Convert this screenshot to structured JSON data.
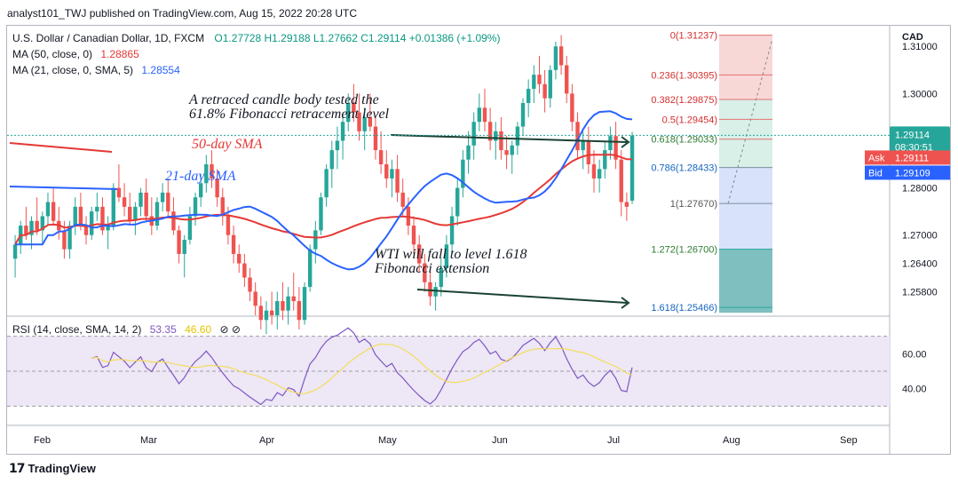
{
  "header": {
    "publisher": "analyst101_TWJ published on TradingView.com, Aug 15, 2022 20:28 UTC"
  },
  "legend": {
    "symbol": "U.S. Dollar / Canadian Dollar, 1D, FXCM",
    "ohlc": "O1.27728  H1.29188  L1.27662  C1.29114  +0.01386 (+1.09%)",
    "ma50": "MA (50, close, 0)",
    "ma50_val": "1.28865",
    "ma21": "MA (21, close, 0, SMA, 5)",
    "ma21_val": "1.28554",
    "rsi": "RSI (14, close, SMA, 14, 2)",
    "rsi_val": "53.35",
    "rsi_sma_val": "46.60"
  },
  "currency": "CAD",
  "footer": {
    "brand": "TradingView"
  },
  "colors": {
    "up": "#26a69a",
    "down": "#ef5350",
    "ma50": "#e53935",
    "ma21": "#2962ff",
    "rsi": "#7e57c2",
    "rsi_sma": "#f5dd5a",
    "rsi_band": "#ede7f6",
    "fib_red": "#f8d7d7",
    "fib_green": "#d8f0e8",
    "fib_blue": "#d8e2fb",
    "fib_teal": "#7fbfc0"
  },
  "chart_data": {
    "type": "candlestick",
    "symbol": "USDCAD",
    "timeframe": "1D",
    "y_range": [
      1.253,
      1.314
    ],
    "price_ticks": [
      1.31,
      1.3,
      1.29,
      1.28,
      1.27,
      1.264,
      1.258
    ],
    "rsi_ticks": [
      60.0,
      40.0
    ],
    "x_labels": [
      "Feb",
      "Mar",
      "Apr",
      "May",
      "Jun",
      "Jul",
      "Aug",
      "Sep"
    ],
    "last_price": {
      "value": "1.29114",
      "countdown": "08:30:51"
    },
    "ask": {
      "label": "Ask",
      "value": "1.29111"
    },
    "bid": {
      "label": "Bid",
      "value": "1.29109"
    },
    "fibonacci": [
      {
        "label": "0(1.31237)",
        "price": 1.31237
      },
      {
        "label": "0.236(1.30395)",
        "price": 1.30395
      },
      {
        "label": "0.382(1.29875)",
        "price": 1.29875
      },
      {
        "label": "0.5(1.29454)",
        "price": 1.29454
      },
      {
        "label": "0.618(1.29033)",
        "price": 1.29033
      },
      {
        "label": "0.786(1.28433)",
        "price": 1.28433
      },
      {
        "label": "1(1.27670)",
        "price": 1.2767
      },
      {
        "label": "1.272(1.26700)",
        "price": 1.267
      },
      {
        "label": "1.618(1.25466)",
        "price": 1.25466
      }
    ],
    "annotations": [
      {
        "text_line1": "A retraced candle body tested the",
        "text_line2": "61.8% Fibonacci retracement level"
      },
      {
        "text_line1": "WTI  will fall to level 1.618",
        "text_line2": "Fibonacci extension"
      },
      {
        "text": "50-day SMA"
      },
      {
        "text": "21-day SMA"
      }
    ],
    "candles": [
      [
        1.265,
        1.27,
        1.261,
        1.268
      ],
      [
        1.268,
        1.273,
        1.266,
        1.272
      ],
      [
        1.272,
        1.276,
        1.269,
        1.27
      ],
      [
        1.27,
        1.274,
        1.267,
        1.273
      ],
      [
        1.273,
        1.278,
        1.27,
        1.271
      ],
      [
        1.271,
        1.275,
        1.268,
        1.274
      ],
      [
        1.274,
        1.279,
        1.272,
        1.277
      ],
      [
        1.277,
        1.28,
        1.272,
        1.273
      ],
      [
        1.273,
        1.276,
        1.269,
        1.271
      ],
      [
        1.271,
        1.273,
        1.265,
        1.267
      ],
      [
        1.267,
        1.273,
        1.265,
        1.272
      ],
      [
        1.272,
        1.278,
        1.27,
        1.276
      ],
      [
        1.276,
        1.279,
        1.271,
        1.272
      ],
      [
        1.272,
        1.274,
        1.268,
        1.27
      ],
      [
        1.27,
        1.276,
        1.269,
        1.275
      ],
      [
        1.275,
        1.279,
        1.273,
        1.276
      ],
      [
        1.276,
        1.278,
        1.27,
        1.271
      ],
      [
        1.271,
        1.274,
        1.267,
        1.272
      ],
      [
        1.272,
        1.281,
        1.271,
        1.28
      ],
      [
        1.28,
        1.285,
        1.277,
        1.278
      ],
      [
        1.278,
        1.281,
        1.274,
        1.276
      ],
      [
        1.276,
        1.279,
        1.272,
        1.273
      ],
      [
        1.273,
        1.277,
        1.27,
        1.276
      ],
      [
        1.276,
        1.28,
        1.274,
        1.279
      ],
      [
        1.279,
        1.282,
        1.273,
        1.274
      ],
      [
        1.274,
        1.278,
        1.27,
        1.272
      ],
      [
        1.272,
        1.278,
        1.271,
        1.277
      ],
      [
        1.277,
        1.281,
        1.275,
        1.279
      ],
      [
        1.279,
        1.282,
        1.274,
        1.275
      ],
      [
        1.275,
        1.278,
        1.27,
        1.271
      ],
      [
        1.271,
        1.272,
        1.264,
        1.266
      ],
      [
        1.266,
        1.27,
        1.261,
        1.269
      ],
      [
        1.269,
        1.276,
        1.268,
        1.274
      ],
      [
        1.274,
        1.279,
        1.272,
        1.278
      ],
      [
        1.278,
        1.283,
        1.276,
        1.281
      ],
      [
        1.281,
        1.287,
        1.279,
        1.285
      ],
      [
        1.285,
        1.288,
        1.28,
        1.282
      ],
      [
        1.282,
        1.284,
        1.276,
        1.278
      ],
      [
        1.278,
        1.28,
        1.272,
        1.274
      ],
      [
        1.274,
        1.276,
        1.268,
        1.27
      ],
      [
        1.27,
        1.272,
        1.264,
        1.266
      ],
      [
        1.266,
        1.268,
        1.262,
        1.264
      ],
      [
        1.264,
        1.266,
        1.259,
        1.261
      ],
      [
        1.261,
        1.263,
        1.256,
        1.258
      ],
      [
        1.258,
        1.26,
        1.253,
        1.255
      ],
      [
        1.255,
        1.257,
        1.25,
        1.252
      ],
      [
        1.252,
        1.256,
        1.249,
        1.254
      ],
      [
        1.254,
        1.258,
        1.251,
        1.253
      ],
      [
        1.253,
        1.258,
        1.25,
        1.256
      ],
      [
        1.256,
        1.26,
        1.252,
        1.254
      ],
      [
        1.254,
        1.259,
        1.251,
        1.257
      ],
      [
        1.257,
        1.262,
        1.254,
        1.256
      ],
      [
        1.256,
        1.259,
        1.25,
        1.252
      ],
      [
        1.252,
        1.26,
        1.251,
        1.259
      ],
      [
        1.259,
        1.268,
        1.258,
        1.267
      ],
      [
        1.267,
        1.273,
        1.264,
        1.271
      ],
      [
        1.271,
        1.279,
        1.27,
        1.278
      ],
      [
        1.278,
        1.285,
        1.276,
        1.284
      ],
      [
        1.284,
        1.29,
        1.28,
        1.288
      ],
      [
        1.288,
        1.293,
        1.284,
        1.29
      ],
      [
        1.29,
        1.296,
        1.286,
        1.294
      ],
      [
        1.294,
        1.3,
        1.292,
        1.298
      ],
      [
        1.298,
        1.302,
        1.294,
        1.296
      ],
      [
        1.296,
        1.3,
        1.29,
        1.292
      ],
      [
        1.292,
        1.297,
        1.288,
        1.295
      ],
      [
        1.295,
        1.3,
        1.292,
        1.293
      ],
      [
        1.293,
        1.295,
        1.286,
        1.288
      ],
      [
        1.288,
        1.292,
        1.283,
        1.285
      ],
      [
        1.285,
        1.288,
        1.28,
        1.282
      ],
      [
        1.282,
        1.286,
        1.278,
        1.284
      ],
      [
        1.284,
        1.287,
        1.277,
        1.279
      ],
      [
        1.279,
        1.282,
        1.274,
        1.276
      ],
      [
        1.276,
        1.278,
        1.27,
        1.272
      ],
      [
        1.272,
        1.274,
        1.266,
        1.268
      ],
      [
        1.268,
        1.27,
        1.262,
        1.264
      ],
      [
        1.264,
        1.266,
        1.258,
        1.26
      ],
      [
        1.26,
        1.262,
        1.255,
        1.257
      ],
      [
        1.257,
        1.26,
        1.254,
        1.259
      ],
      [
        1.259,
        1.265,
        1.257,
        1.263
      ],
      [
        1.263,
        1.27,
        1.261,
        1.268
      ],
      [
        1.268,
        1.276,
        1.266,
        1.274
      ],
      [
        1.274,
        1.282,
        1.272,
        1.28
      ],
      [
        1.28,
        1.288,
        1.278,
        1.286
      ],
      [
        1.286,
        1.292,
        1.283,
        1.289
      ],
      [
        1.289,
        1.296,
        1.286,
        1.294
      ],
      [
        1.294,
        1.3,
        1.292,
        1.297
      ],
      [
        1.297,
        1.301,
        1.292,
        1.294
      ],
      [
        1.294,
        1.297,
        1.288,
        1.29
      ],
      [
        1.29,
        1.294,
        1.286,
        1.292
      ],
      [
        1.292,
        1.295,
        1.286,
        1.288
      ],
      [
        1.288,
        1.291,
        1.284,
        1.287
      ],
      [
        1.287,
        1.29,
        1.283,
        1.289
      ],
      [
        1.289,
        1.294,
        1.287,
        1.293
      ],
      [
        1.293,
        1.299,
        1.291,
        1.298
      ],
      [
        1.298,
        1.303,
        1.295,
        1.301
      ],
      [
        1.301,
        1.306,
        1.298,
        1.304
      ],
      [
        1.304,
        1.308,
        1.3,
        1.302
      ],
      [
        1.302,
        1.305,
        1.296,
        1.299
      ],
      [
        1.299,
        1.306,
        1.297,
        1.305
      ],
      [
        1.305,
        1.311,
        1.303,
        1.31
      ],
      [
        1.31,
        1.3124,
        1.304,
        1.306
      ],
      [
        1.306,
        1.308,
        1.298,
        1.3
      ],
      [
        1.3,
        1.302,
        1.292,
        1.294
      ],
      [
        1.294,
        1.296,
        1.286,
        1.288
      ],
      [
        1.288,
        1.292,
        1.284,
        1.29
      ],
      [
        1.29,
        1.293,
        1.283,
        1.285
      ],
      [
        1.285,
        1.288,
        1.279,
        1.282
      ],
      [
        1.282,
        1.286,
        1.279,
        1.284
      ],
      [
        1.284,
        1.29,
        1.282,
        1.288
      ],
      [
        1.288,
        1.293,
        1.286,
        1.291
      ],
      [
        1.291,
        1.294,
        1.284,
        1.286
      ],
      [
        1.286,
        1.288,
        1.274,
        1.277
      ],
      [
        1.277,
        1.279,
        1.273,
        1.276
      ],
      [
        1.2773,
        1.2919,
        1.2766,
        1.2911
      ]
    ]
  }
}
